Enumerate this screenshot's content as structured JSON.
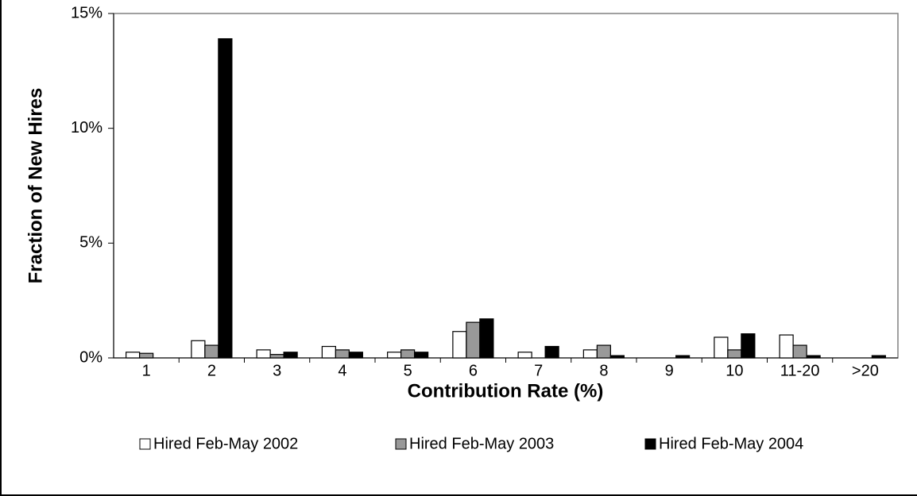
{
  "chart_data": {
    "type": "bar",
    "x_label": "Contribution Rate (%)",
    "y_label": "Fraction of New Hires",
    "categories": [
      "1",
      "2",
      "3",
      "4",
      "5",
      "6",
      "7",
      "8",
      "9",
      "10",
      "11-20",
      ">20"
    ],
    "series": [
      {
        "name": "Hired Feb-May 2002",
        "color": "#ffffff",
        "values": [
          0.25,
          0.75,
          0.35,
          0.5,
          0.25,
          1.15,
          0.25,
          0.35,
          0,
          0.9,
          1.0,
          0
        ]
      },
      {
        "name": "Hired Feb-May 2003",
        "color": "#999999",
        "values": [
          0.2,
          0.55,
          0.15,
          0.35,
          0.35,
          1.55,
          0,
          0.55,
          0,
          0.35,
          0.55,
          0
        ]
      },
      {
        "name": "Hired Feb-May 2004",
        "color": "#000000",
        "values": [
          0,
          13.9,
          0.25,
          0.25,
          0.25,
          1.7,
          0.5,
          0.1,
          0.1,
          1.05,
          0.1,
          0.1
        ]
      }
    ],
    "ylim": [
      0,
      15
    ],
    "yticks": [
      {
        "value": 0,
        "label": "0%"
      },
      {
        "value": 5,
        "label": "5%"
      },
      {
        "value": 10,
        "label": "10%"
      },
      {
        "value": 15,
        "label": "15%"
      }
    ]
  }
}
